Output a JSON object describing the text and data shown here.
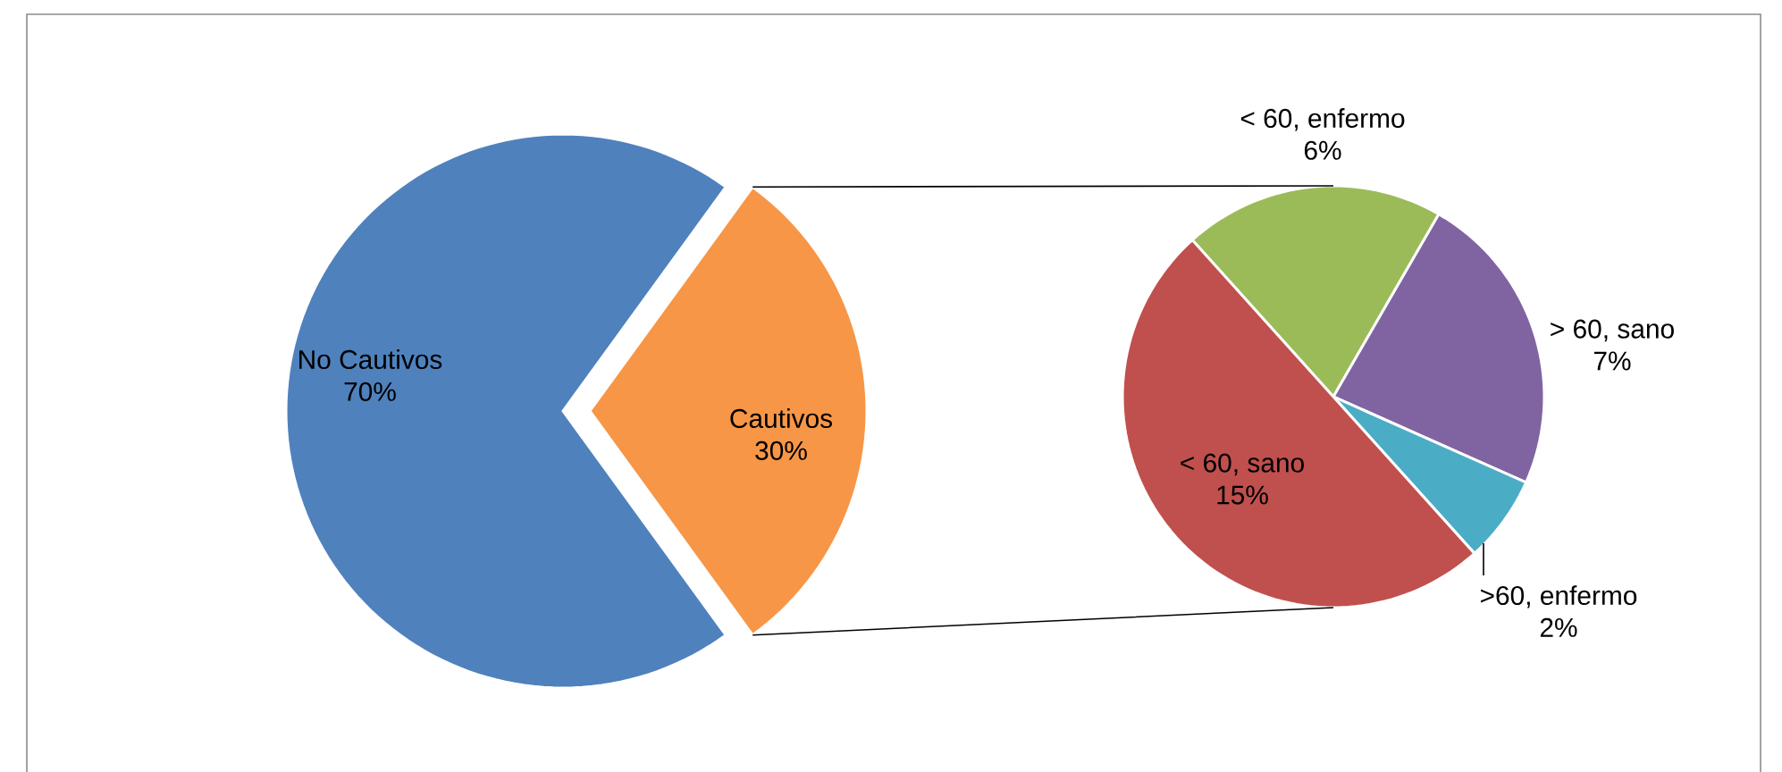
{
  "chart_data": [
    {
      "type": "pie",
      "categories": [
        "No Cautivos",
        "Cautivos"
      ],
      "values": [
        70,
        30
      ],
      "colors": [
        "#4f81bd",
        "#f79646"
      ],
      "value_labels": [
        "70%",
        "30%"
      ]
    },
    {
      "type": "pie",
      "categories": [
        "< 60, enfermo",
        "> 60, sano",
        ">60, enfermo",
        "< 60, sano"
      ],
      "values": [
        6,
        7,
        2,
        15
      ],
      "colors": [
        "#9bbb59",
        "#8064a2",
        "#4bacc6",
        "#c0504d"
      ],
      "value_labels": [
        "6%",
        "7%",
        "2%",
        "15%"
      ]
    }
  ]
}
